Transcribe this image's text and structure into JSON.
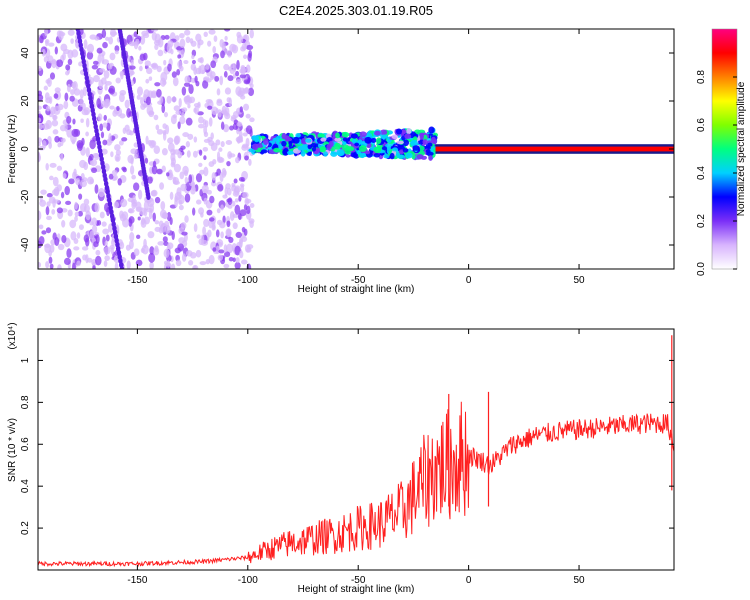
{
  "chart_data": [
    {
      "type": "heatmap",
      "title": "C2E4.2025.303.01.19.R05",
      "xlabel": "Height of straight line (km)",
      "ylabel": "Frequency (Hz)",
      "xlim": [
        -195,
        93
      ],
      "ylim": [
        -50,
        50
      ],
      "x_ticks": [
        "-150",
        "-100",
        "-50",
        "0",
        "50"
      ],
      "y_ticks": [
        "40",
        "20",
        "0",
        "-20",
        "-40"
      ],
      "colorbar": {
        "label": "Normalized spectral amplitude",
        "range": [
          0,
          1
        ],
        "ticks": [
          "0.0",
          "0.2",
          "0.4",
          "0.6",
          "0.8"
        ],
        "colors": [
          "#ffffff",
          "#d8b4fe",
          "#7b2ff7",
          "#0000ff",
          "#00d0ff",
          "#00ff80",
          "#80ff00",
          "#ffff00",
          "#ff8000",
          "#ff0000",
          "#ff0080"
        ]
      },
      "regions": [
        {
          "x": [
            -195,
            -98
          ],
          "y": [
            -50,
            50
          ],
          "amplitude": 0.15,
          "description_key": "diffuse"
        },
        {
          "x": [
            -98,
            -15
          ],
          "y": [
            -10,
            10
          ],
          "amplitude": 0.45
        },
        {
          "x": [
            -15,
            93
          ],
          "y": [
            -2,
            2
          ],
          "amplitude": 0.95
        }
      ],
      "streaks": [
        {
          "x": [
            -177,
            -157
          ],
          "y": [
            50,
            -50
          ]
        },
        {
          "x": [
            -158,
            -145
          ],
          "y": [
            50,
            -20
          ]
        }
      ]
    },
    {
      "type": "line",
      "xlabel": "Height of straight line (km)",
      "ylabel": "SNR (10 * v/v)",
      "y_multiplier": "(x10⁴)",
      "xlim": [
        -195,
        93
      ],
      "ylim": [
        0,
        1.15
      ],
      "x_ticks": [
        "-150",
        "-100",
        "-50",
        "0",
        "50"
      ],
      "y_ticks": [
        "1",
        "0.8",
        "0.6",
        "0.4",
        "0.2"
      ],
      "color": "#ff2020",
      "x": [
        -195,
        -150,
        -120,
        -100,
        -90,
        -80,
        -70,
        -60,
        -50,
        -40,
        -30,
        -25,
        -20,
        -15,
        -10,
        0,
        10,
        20,
        30,
        40,
        50,
        60,
        70,
        80,
        90,
        93
      ],
      "y": [
        0.03,
        0.03,
        0.04,
        0.06,
        0.1,
        0.13,
        0.15,
        0.17,
        0.2,
        0.22,
        0.28,
        0.35,
        0.42,
        0.48,
        0.5,
        0.55,
        0.5,
        0.6,
        0.64,
        0.66,
        0.67,
        0.68,
        0.69,
        0.7,
        0.7,
        0.6
      ],
      "spikes": [
        {
          "x": -9,
          "y": 0.84
        },
        {
          "x": 9,
          "y": 0.85
        },
        {
          "x": 92,
          "y": 1.12
        }
      ]
    }
  ]
}
